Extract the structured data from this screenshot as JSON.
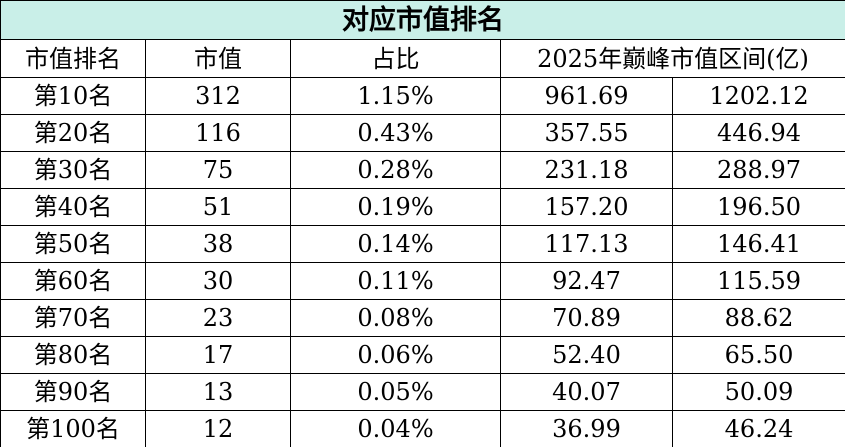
{
  "table": {
    "title": "对应市值排名",
    "header": [
      "市值排名",
      "市值",
      "占比",
      "2025年巅峰市值区间(亿)"
    ],
    "rows": [
      [
        "第10名",
        "312",
        "1.15%",
        "961.69",
        "1202.12"
      ],
      [
        "第20名",
        "116",
        "0.43%",
        "357.55",
        "446.94"
      ],
      [
        "第30名",
        "75",
        "0.28%",
        "231.18",
        "288.97"
      ],
      [
        "第40名",
        "51",
        "0.19%",
        "157.20",
        "196.50"
      ],
      [
        "第50名",
        "38",
        "0.14%",
        "117.13",
        "146.41"
      ],
      [
        "第60名",
        "30",
        "0.11%",
        "92.47",
        "115.59"
      ],
      [
        "第70名",
        "23",
        "0.08%",
        "70.89",
        "88.62"
      ],
      [
        "第80名",
        "17",
        "0.06%",
        "52.40",
        "65.50"
      ],
      [
        "第90名",
        "13",
        "0.05%",
        "40.07",
        "50.09"
      ],
      [
        "第100名",
        "12",
        "0.04%",
        "36.99",
        "46.24"
      ]
    ]
  }
}
